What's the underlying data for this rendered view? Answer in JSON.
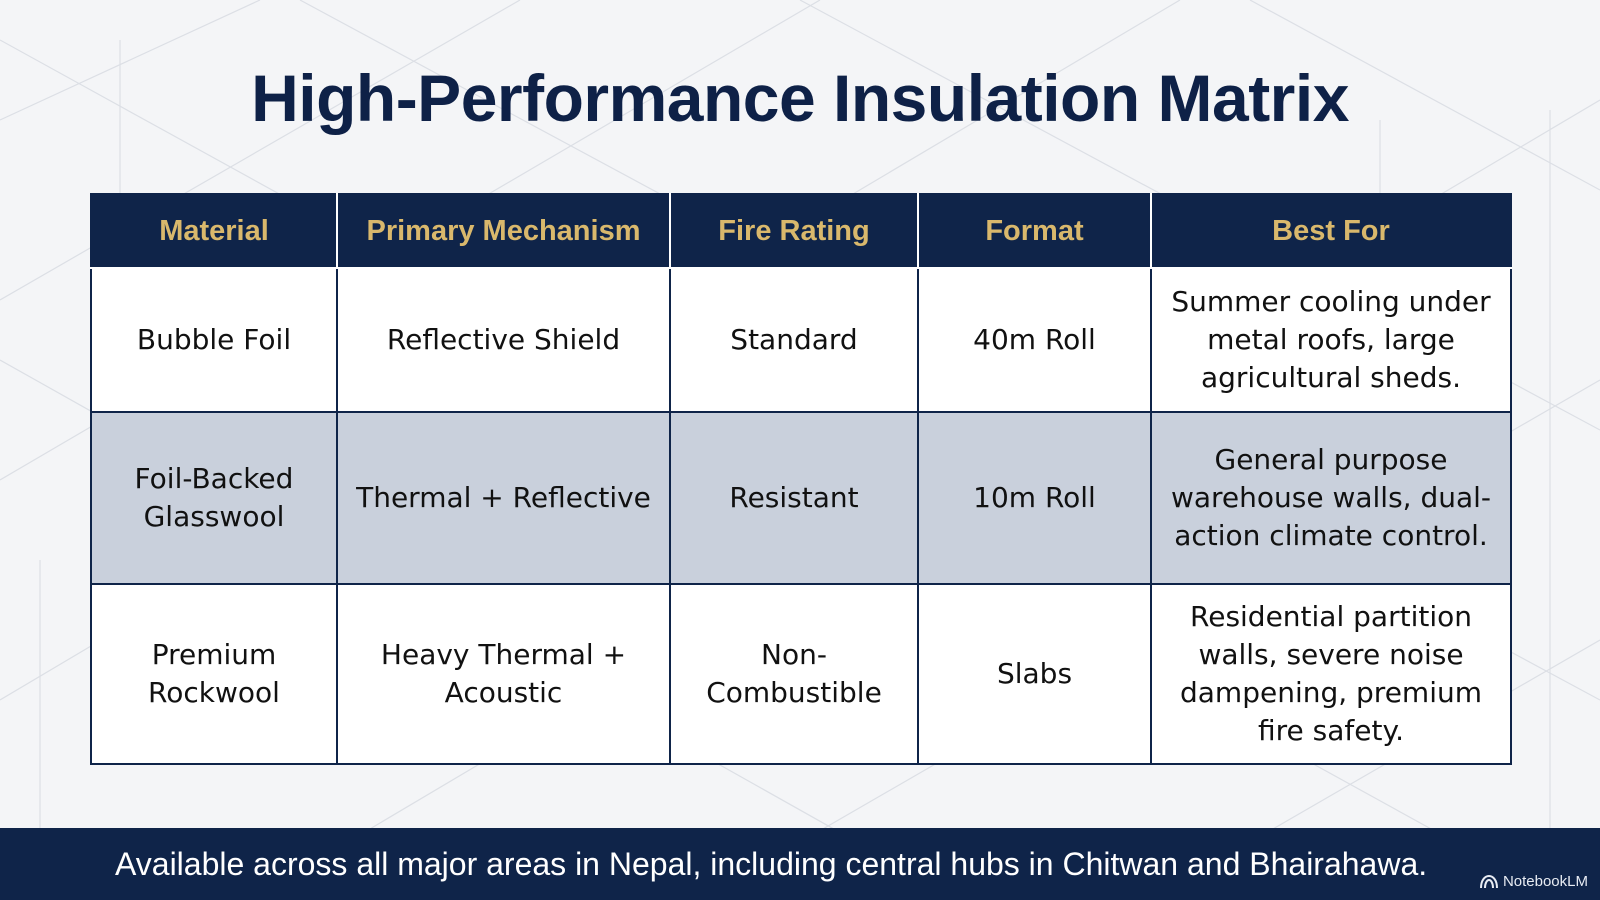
{
  "title": "High-Performance Insulation Matrix",
  "table": {
    "headers": [
      "Material",
      "Primary Mechanism",
      "Fire Rating",
      "Format",
      "Best For"
    ],
    "rows": [
      {
        "material": "Bubble Foil",
        "mechanism": "Reflective Shield",
        "fire_rating": "Standard",
        "format": "40m Roll",
        "best_for": "Summer cooling under metal roofs, large agricultural sheds."
      },
      {
        "material": "Foil-Backed Glasswool",
        "mechanism": "Thermal + Reflective",
        "fire_rating": "Resistant",
        "format": "10m Roll",
        "best_for": "General purpose warehouse walls, dual-action climate control."
      },
      {
        "material": "Premium Rockwool",
        "mechanism": "Heavy Thermal + Acoustic",
        "fire_rating": "Non-Combustible",
        "format": "Slabs",
        "best_for": "Residential partition walls, severe noise dampening, premium fire safety."
      }
    ]
  },
  "footer": {
    "text": "Available across all major areas in Nepal, including central hubs in Chitwan and Bhairahawa."
  },
  "brand": {
    "label": "NotebookLM",
    "icon": "notebooklm-logo-icon"
  },
  "colors": {
    "navy": "#0f2449",
    "gold": "#d9b86c",
    "shaded_row": "#c9d0dc"
  }
}
